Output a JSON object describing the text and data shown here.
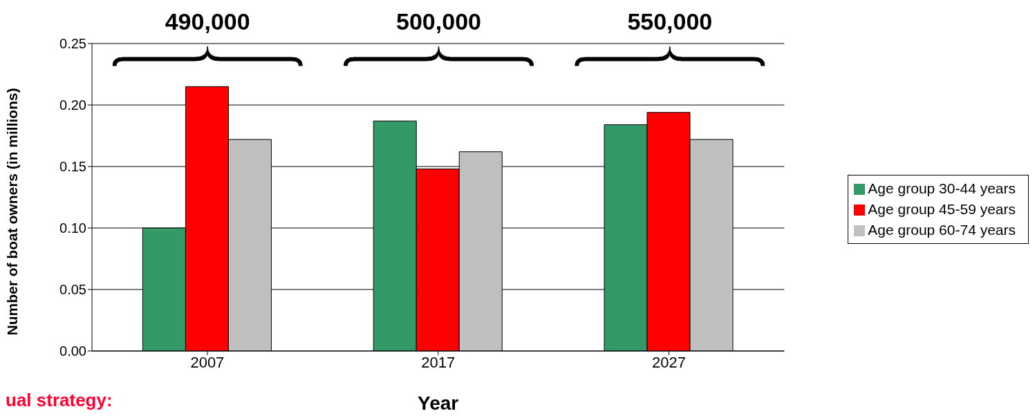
{
  "chart_data": {
    "type": "bar",
    "xlabel": "Year",
    "ylabel": "Number of boat owners (in millions)",
    "categories": [
      "2007",
      "2017",
      "2027"
    ],
    "series": [
      {
        "name": "Age group 30-44 years",
        "color": "#339966",
        "values": [
          0.1,
          0.187,
          0.184
        ]
      },
      {
        "name": "Age group 45-59 years",
        "color": "#ff0000",
        "values": [
          0.215,
          0.148,
          0.194
        ]
      },
      {
        "name": "Age group 60-74 years",
        "color": "#c0c0c0",
        "values": [
          0.172,
          0.162,
          0.172
        ]
      }
    ],
    "ylim": [
      0,
      0.25
    ],
    "yticks": [
      {
        "value": 0,
        "label": "0.00"
      },
      {
        "value": 0.05,
        "label": "0.05"
      },
      {
        "value": 0.1,
        "label": "0.10"
      },
      {
        "value": 0.15,
        "label": "0.15"
      },
      {
        "value": 0.2,
        "label": "0.20"
      },
      {
        "value": 0.25,
        "label": "0.25"
      }
    ],
    "grid": "y",
    "legend": "right",
    "annotations": [
      "490,000",
      "500,000",
      "550,000",
      "ual strategy:"
    ]
  }
}
